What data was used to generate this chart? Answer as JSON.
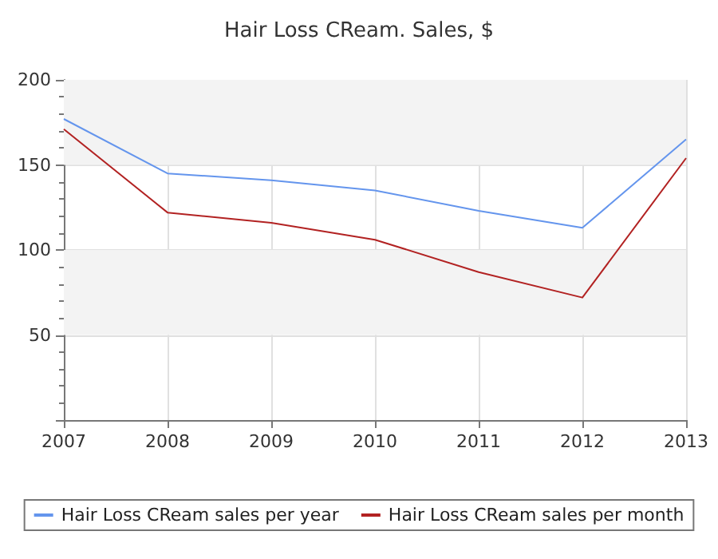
{
  "chart_data": {
    "type": "line",
    "title": "Hair Loss CReam. Sales, $",
    "x": [
      2007,
      2008,
      2009,
      2010,
      2011,
      2012,
      2013
    ],
    "xlim": [
      2007,
      2013
    ],
    "xticks": [
      2007,
      2008,
      2009,
      2010,
      2011,
      2012,
      2013
    ],
    "ylim": [
      0,
      200
    ],
    "yticks": [
      {
        "value": 0,
        "label": null
      },
      50,
      100,
      150,
      200
    ],
    "series": [
      {
        "name": "Hair Loss CReam sales per year",
        "color": "#6495ed",
        "values": [
          177,
          145,
          141,
          135,
          123,
          113,
          165
        ]
      },
      {
        "name": "Hair Loss CReam sales per month",
        "color": "#b22222",
        "values": [
          171,
          122,
          116,
          106,
          87,
          72,
          154
        ]
      }
    ],
    "bands": [
      {
        "axis": "y",
        "from": 150,
        "to": 200,
        "color": "#f3f3f3"
      },
      {
        "axis": "y",
        "from": 50,
        "to": 100,
        "color": "#f3f3f3"
      }
    ],
    "grid": true,
    "legend": "bottom",
    "marker": "none",
    "line_style": "solid"
  }
}
